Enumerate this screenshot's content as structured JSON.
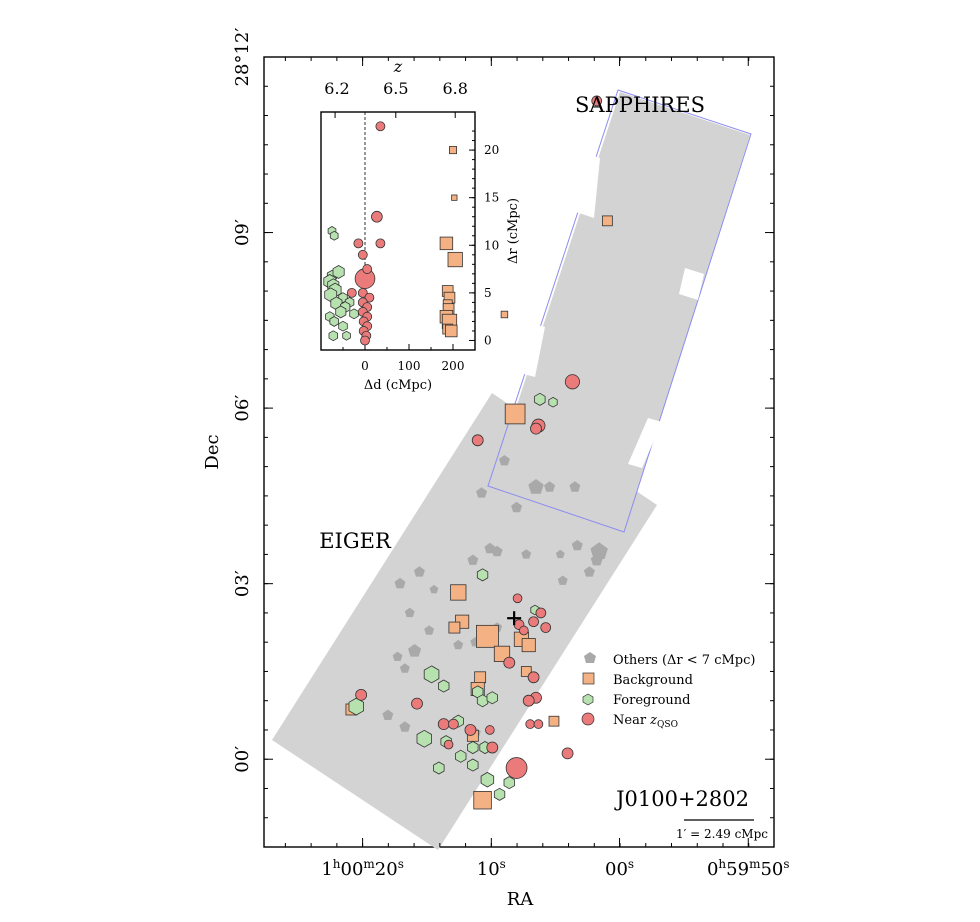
{
  "figure": {
    "field_name": "J0100+2802",
    "scale_label": "1′ = 2.49 cMpc",
    "survey_labels": [
      "EIGER",
      "SAPPHIRES"
    ]
  },
  "colors": {
    "background_sq": "#f4b183",
    "foreground_hex": "#b7e2b0",
    "near_circle": "#eb7b7b",
    "others_pent": "#a9a9a9",
    "mosaic": "#d3d3d3",
    "sapphires_outline": "#8c8cf0"
  },
  "chart_data": [
    {
      "type": "scatter",
      "title": "",
      "xlabel": "RA",
      "ylabel": "Dec",
      "x_tick_labels": [
        "1h00m20s",
        "10s",
        "00s",
        "0h59m50s"
      ],
      "x_ticks_arcmin": [
        -3.97,
        -1.32,
        1.32,
        3.97
      ],
      "y_tick_labels": [
        "00′",
        "03′",
        "06′",
        "09′",
        "28°12′"
      ],
      "y_ticks_arcmin": [
        0,
        3,
        6,
        9,
        12
      ],
      "xlim_arcmin": [
        -6.0,
        4.5
      ],
      "ylim_arcmin": [
        -1.5,
        12.0
      ],
      "legend": {
        "placement": "lower-right",
        "entries": [
          {
            "key": "others",
            "label": "Others (Δr < 7 cMpc)"
          },
          {
            "key": "background",
            "label": "Background"
          },
          {
            "key": "foreground",
            "label": "Foreground"
          },
          {
            "key": "near",
            "label": "Near zQSO"
          }
        ]
      },
      "quasar": [
        -0.85,
        2.41
      ],
      "series": [
        {
          "name": "Background",
          "marker": "square",
          "points": [
            [
              1.07,
              9.2,
              0.9
            ],
            [
              -0.83,
              5.9,
              1.8
            ],
            [
              -4.2,
              0.85,
              1.0
            ],
            [
              -2.0,
              2.85,
              1.4
            ],
            [
              -1.92,
              2.35,
              1.2
            ],
            [
              -2.08,
              2.25,
              1.0
            ],
            [
              -1.4,
              2.1,
              2.0
            ],
            [
              -0.7,
              2.05,
              1.3
            ],
            [
              -0.55,
              1.95,
              1.2
            ],
            [
              -1.1,
              1.8,
              1.4
            ],
            [
              -0.6,
              1.5,
              0.9
            ],
            [
              -1.55,
              1.4,
              1.0
            ],
            [
              -1.6,
              1.2,
              1.2
            ],
            [
              -0.03,
              0.65,
              0.9
            ],
            [
              -1.7,
              0.4,
              1.0
            ],
            [
              -1.5,
              -0.7,
              1.6
            ],
            [
              -1.05,
              7.6,
              0.6
            ]
          ]
        },
        {
          "name": "Foreground",
          "marker": "hexagon",
          "points": [
            [
              -0.32,
              6.15,
              1.0
            ],
            [
              -0.05,
              6.1,
              0.8
            ],
            [
              -1.5,
              3.15,
              1.0
            ],
            [
              -0.42,
              2.55,
              0.8
            ],
            [
              -2.55,
              1.45,
              1.4
            ],
            [
              -2.3,
              1.25,
              1.0
            ],
            [
              -1.6,
              1.15,
              1.0
            ],
            [
              -1.5,
              1.0,
              1.0
            ],
            [
              -1.3,
              1.05,
              1.0
            ],
            [
              -4.1,
              0.9,
              1.4
            ],
            [
              -2.0,
              0.65,
              1.0
            ],
            [
              -2.25,
              0.3,
              1.0
            ],
            [
              -1.7,
              0.2,
              1.0
            ],
            [
              -1.45,
              0.2,
              1.0
            ],
            [
              -2.7,
              0.35,
              1.4
            ],
            [
              -1.95,
              0.05,
              1.0
            ],
            [
              -1.7,
              -0.1,
              1.0
            ],
            [
              -1.4,
              -0.35,
              1.2
            ],
            [
              -2.4,
              -0.15,
              1.0
            ],
            [
              -0.95,
              -0.4,
              1.0
            ],
            [
              -1.15,
              -0.6,
              1.0
            ]
          ]
        },
        {
          "name": "Near zQSO",
          "marker": "circle",
          "points": [
            [
              0.85,
              11.25,
              0.9
            ],
            [
              0.35,
              6.45,
              1.3
            ],
            [
              -0.35,
              5.7,
              1.2
            ],
            [
              -0.4,
              5.65,
              1.0
            ],
            [
              -1.6,
              5.45,
              1.0
            ],
            [
              -0.78,
              2.75,
              0.8
            ],
            [
              -0.3,
              2.5,
              0.9
            ],
            [
              -0.45,
              2.35,
              0.9
            ],
            [
              -0.75,
              2.3,
              0.9
            ],
            [
              -0.65,
              2.2,
              0.8
            ],
            [
              -0.2,
              2.25,
              0.9
            ],
            [
              -0.45,
              1.4,
              1.0
            ],
            [
              -0.95,
              1.65,
              1.0
            ],
            [
              -0.4,
              1.05,
              1.0
            ],
            [
              -0.55,
              1.0,
              1.0
            ],
            [
              -0.52,
              0.6,
              0.8
            ],
            [
              -0.35,
              0.6,
              0.8
            ],
            [
              -1.35,
              0.5,
              0.8
            ],
            [
              -2.3,
              0.6,
              1.0
            ],
            [
              -2.1,
              0.6,
              0.9
            ],
            [
              -2.2,
              0.25,
              0.8
            ],
            [
              -1.75,
              0.5,
              1.0
            ],
            [
              -4.0,
              1.1,
              1.0
            ],
            [
              -2.85,
              0.95,
              1.0
            ],
            [
              -1.3,
              0.2,
              1.0
            ],
            [
              -0.8,
              -0.15,
              1.9
            ],
            [
              0.25,
              0.1,
              1.0
            ]
          ]
        },
        {
          "name": "Others (Δr < 7 cMpc)",
          "marker": "pentagon",
          "points": [
            [
              -1.05,
              5.1,
              1.0
            ],
            [
              -0.4,
              4.65,
              1.4
            ],
            [
              -0.12,
              4.65,
              1.0
            ],
            [
              -1.52,
              4.55,
              1.0
            ],
            [
              0.4,
              4.65,
              1.0
            ],
            [
              -0.8,
              4.3,
              1.0
            ],
            [
              -1.2,
              3.55,
              1.0
            ],
            [
              -0.6,
              3.5,
              0.9
            ],
            [
              0.1,
              3.5,
              0.8
            ],
            [
              0.15,
              3.05,
              0.9
            ],
            [
              -1.35,
              3.6,
              1.0
            ],
            [
              -1.7,
              3.4,
              1.0
            ],
            [
              0.9,
              3.55,
              1.6
            ],
            [
              0.85,
              3.4,
              1.1
            ],
            [
              0.45,
              3.65,
              1.0
            ],
            [
              0.7,
              3.2,
              1.0
            ],
            [
              -2.8,
              3.2,
              1.0
            ],
            [
              -3.2,
              3.0,
              1.0
            ],
            [
              -2.5,
              2.9,
              0.8
            ],
            [
              -3.0,
              2.5,
              0.9
            ],
            [
              -2.6,
              2.2,
              0.9
            ],
            [
              -1.2,
              2.25,
              0.9
            ],
            [
              -1.65,
              2.0,
              0.9
            ],
            [
              -2.0,
              1.95,
              0.9
            ],
            [
              -3.25,
              1.75,
              0.9
            ],
            [
              -3.1,
              1.55,
              0.9
            ],
            [
              -2.9,
              1.85,
              1.2
            ],
            [
              -3.45,
              0.75,
              1.0
            ],
            [
              -3.1,
              0.55,
              1.0
            ],
            [
              -1.65,
              0.45,
              1.0
            ]
          ]
        }
      ]
    },
    {
      "type": "scatter",
      "title": "",
      "xlabel": "Δd (cMpc)",
      "ylabel": "Δr (cMpc)",
      "top_axis_label": "z",
      "top_tick_labels": [
        "6.2",
        "6.5",
        "6.8"
      ],
      "top_ticks_dd": [
        -68,
        70,
        205
      ],
      "x_tick_labels": [
        "0",
        "100",
        "200"
      ],
      "x_ticks": [
        0,
        100,
        200
      ],
      "y_tick_labels": [
        "0",
        "5",
        "10",
        "15",
        "20"
      ],
      "y_ticks": [
        0,
        5,
        10,
        15,
        20
      ],
      "xlim": [
        -100,
        250
      ],
      "ylim": [
        -1,
        24
      ],
      "series": [
        {
          "name": "Foreground",
          "marker": "hexagon",
          "points": [
            [
              -75,
              11.5,
              0.9
            ],
            [
              -70,
              11.0,
              0.9
            ],
            [
              -75,
              6.8,
              1.1
            ],
            [
              -60,
              7.2,
              1.3
            ],
            [
              -80,
              6.2,
              1.4
            ],
            [
              -72,
              5.8,
              1.3
            ],
            [
              -68,
              5.3,
              1.4
            ],
            [
              -78,
              4.8,
              1.4
            ],
            [
              -50,
              4.5,
              1.0
            ],
            [
              -35,
              4.0,
              1.0
            ],
            [
              -65,
              3.9,
              1.3
            ],
            [
              -45,
              3.5,
              1.1
            ],
            [
              -55,
              3.0,
              1.2
            ],
            [
              -25,
              2.8,
              1.0
            ],
            [
              -80,
              2.5,
              1.0
            ],
            [
              -70,
              2.0,
              1.0
            ],
            [
              -50,
              1.5,
              1.0
            ],
            [
              -72,
              0.5,
              1.0
            ],
            [
              -42,
              0.5,
              0.9
            ]
          ]
        },
        {
          "name": "Near zQSO",
          "marker": "circle",
          "points": [
            [
              35,
              22.5,
              1.0
            ],
            [
              27,
              13.0,
              1.2
            ],
            [
              -15,
              10.2,
              1.0
            ],
            [
              35,
              10.2,
              1.0
            ],
            [
              -5,
              9.0,
              1.0
            ],
            [
              0,
              6.5,
              2.2
            ],
            [
              -30,
              5.0,
              1.0
            ],
            [
              5,
              7.5,
              1.0
            ],
            [
              -5,
              5.0,
              1.0
            ],
            [
              10,
              4.5,
              1.0
            ],
            [
              -5,
              4.0,
              1.0
            ],
            [
              5,
              3.5,
              1.0
            ],
            [
              -5,
              3.0,
              1.0
            ],
            [
              5,
              2.5,
              1.0
            ],
            [
              -3,
              2.0,
              1.0
            ],
            [
              5,
              1.5,
              1.0
            ],
            [
              -3,
              1.0,
              1.0
            ],
            [
              3,
              0.5,
              1.0
            ],
            [
              0,
              0.0,
              1.0
            ]
          ]
        },
        {
          "name": "Background",
          "marker": "square",
          "points": [
            [
              200,
              20.0,
              0.8
            ],
            [
              203,
              15.0,
              0.6
            ],
            [
              185,
              10.2,
              1.4
            ],
            [
              205,
              8.5,
              1.6
            ],
            [
              188,
              5.2,
              1.2
            ],
            [
              192,
              4.5,
              1.2
            ],
            [
              188,
              3.8,
              1.0
            ],
            [
              190,
              3.3,
              1.2
            ],
            [
              185,
              2.5,
              1.4
            ],
            [
              192,
              2.0,
              1.6
            ],
            [
              188,
              1.2,
              1.1
            ],
            [
              196,
              1.0,
              1.3
            ]
          ]
        }
      ]
    }
  ]
}
